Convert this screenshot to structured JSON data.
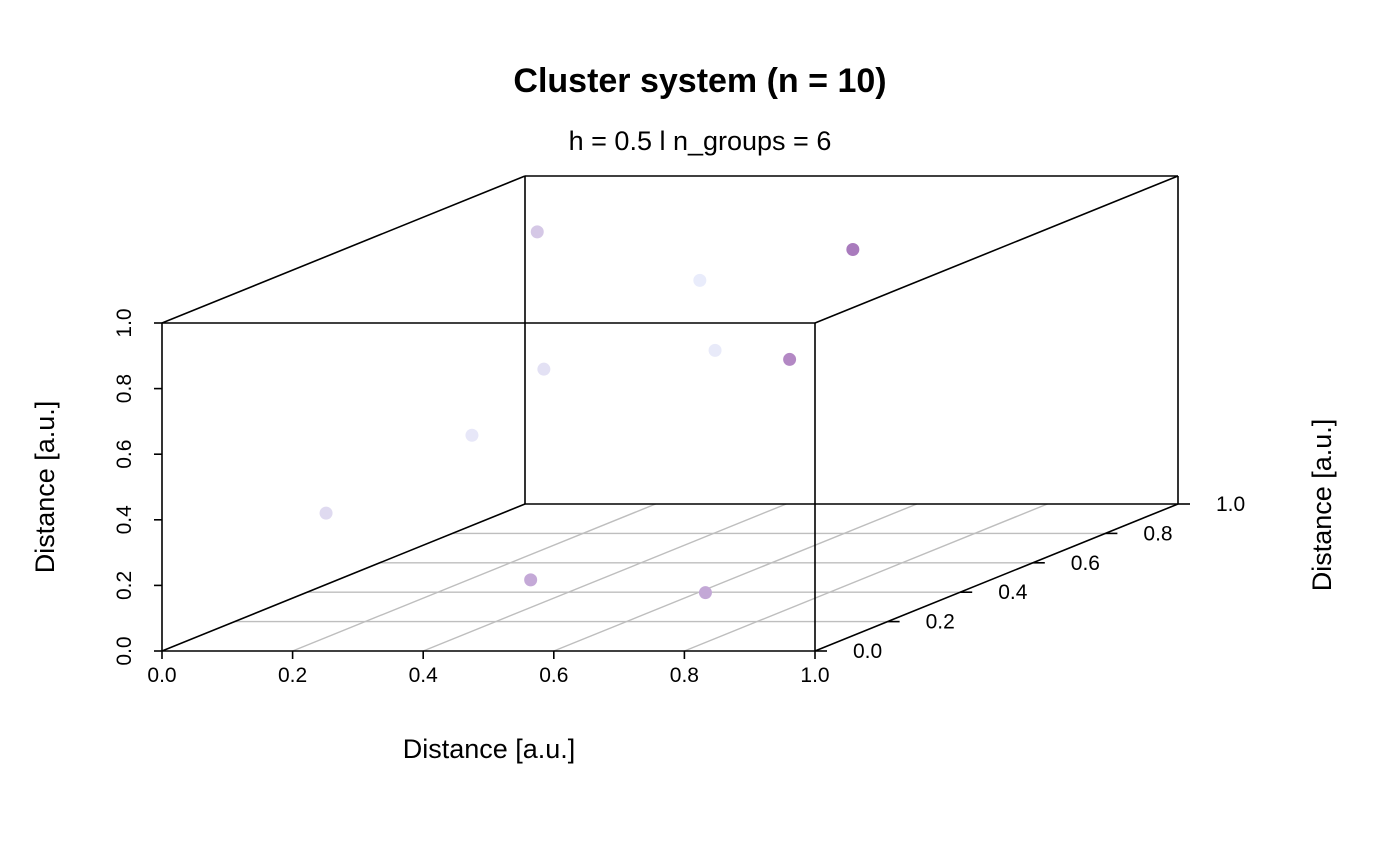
{
  "chart_data": {
    "type": "scatter",
    "projection": "3d-perspective-box",
    "title": "Cluster system (n = 10)",
    "subtitle": "h = 0.5 l n_groups = 6",
    "xlabel": "Distance [a.u.]",
    "ylabel": "Distance [a.u.]",
    "zlabel": "Distance [a.u.]",
    "xlim": [
      0,
      1
    ],
    "ylim": [
      0,
      1
    ],
    "zlim": [
      0,
      1
    ],
    "x_ticks": [
      "0.0",
      "0.2",
      "0.4",
      "0.6",
      "0.8",
      "1.0"
    ],
    "y_ticks": [
      "0.0",
      "0.2",
      "0.4",
      "0.6",
      "0.8",
      "1.0"
    ],
    "z_ticks": [
      "0.0",
      "0.2",
      "0.4",
      "0.6",
      "0.8",
      "1.0"
    ],
    "grid": "floor",
    "points": [
      {
        "x": 0.81,
        "y": 0.04,
        "z": 0.16,
        "color": "#c3a8d6"
      },
      {
        "x": 0.37,
        "y": 0.35,
        "z": 0.06,
        "color": "#c4a9d7"
      },
      {
        "x": 0.04,
        "y": 0.38,
        "z": 0.25,
        "color": "#dfdaf0"
      },
      {
        "x": 0.13,
        "y": 0.62,
        "z": 0.38,
        "color": "#e7e7f8"
      },
      {
        "x": 0.38,
        "y": 0.84,
        "z": 0.54,
        "color": "#e8eaf9"
      },
      {
        "x": 0.04,
        "y": 0.98,
        "z": 0.42,
        "color": "#e3e1f4"
      },
      {
        "x": 0.34,
        "y": 0.87,
        "z": 0.74,
        "color": "#e9ecfb"
      },
      {
        "x": 0.95,
        "y": 0.02,
        "z": 0.88,
        "color": "#b388c4"
      },
      {
        "x": 0.78,
        "y": 0.5,
        "z": 1.0,
        "color": "#a97bbd"
      },
      {
        "x": 0.23,
        "y": 0.62,
        "z": 1.0,
        "color": "#d5c8e6"
      }
    ]
  }
}
